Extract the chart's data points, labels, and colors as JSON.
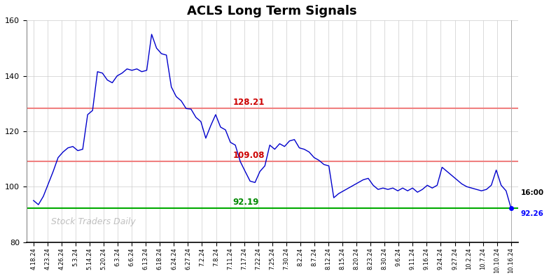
{
  "title": "ACLS Long Term Signals",
  "ylim": [
    80,
    160
  ],
  "yticks": [
    80,
    100,
    120,
    140,
    160
  ],
  "upper_resistance": 128.21,
  "lower_resistance": 109.08,
  "support": 92.19,
  "last_price": 92.26,
  "last_time_label": "16:00",
  "watermark": "Stock Traders Daily",
  "line_color": "#0000cc",
  "upper_res_color": "#f08080",
  "lower_res_color": "#f08080",
  "support_color": "#00aa00",
  "annotation_upper_color": "#cc0000",
  "annotation_lower_color": "#cc0000",
  "annotation_support_color": "#008800",
  "last_price_color": "#0000ff",
  "background_color": "#ffffff",
  "grid_color": "#cccccc",
  "xtick_labels": [
    "4.18.24",
    "4.23.24",
    "4.26.24",
    "5.3.24",
    "5.14.24",
    "5.20.24",
    "6.3.24",
    "6.6.24",
    "6.13.24",
    "6.18.24",
    "6.24.24",
    "6.27.24",
    "7.2.24",
    "7.8.24",
    "7.11.24",
    "7.17.24",
    "7.22.24",
    "7.25.24",
    "7.30.24",
    "8.2.24",
    "8.7.24",
    "8.12.24",
    "8.15.24",
    "8.20.24",
    "8.23.24",
    "8.30.24",
    "9.6.24",
    "9.11.24",
    "9.16.24",
    "9.24.24",
    "9.27.24",
    "10.2.24",
    "10.7.24",
    "10.10.24",
    "10.16.24"
  ],
  "prices": [
    95.0,
    93.5,
    96.5,
    101.0,
    105.5,
    110.5,
    112.5,
    114.0,
    114.5,
    113.0,
    113.5,
    126.0,
    127.5,
    141.5,
    141.0,
    138.5,
    137.5,
    140.0,
    141.0,
    142.5,
    142.0,
    142.5,
    141.5,
    142.0,
    155.0,
    150.0,
    148.0,
    147.5,
    136.0,
    132.5,
    131.0,
    128.21,
    128.0,
    125.0,
    123.5,
    117.5,
    122.0,
    126.0,
    121.5,
    120.5,
    116.0,
    115.0,
    109.08,
    105.5,
    102.0,
    101.5,
    105.5,
    107.5,
    115.0,
    113.5,
    115.5,
    114.5,
    116.5,
    117.0,
    114.0,
    113.5,
    112.5,
    110.5,
    109.5,
    108.0,
    107.5,
    96.0,
    97.5,
    98.5,
    99.5,
    100.5,
    101.5,
    102.5,
    103.0,
    100.5,
    99.0,
    99.5,
    99.0,
    99.5,
    98.5,
    99.5,
    98.5,
    99.5,
    98.0,
    99.0,
    100.5,
    99.5,
    100.5,
    107.0,
    105.5,
    104.0,
    102.5,
    101.0,
    100.0,
    99.5,
    99.0,
    98.5,
    99.0,
    100.5,
    106.0,
    100.5,
    98.5,
    92.26
  ]
}
